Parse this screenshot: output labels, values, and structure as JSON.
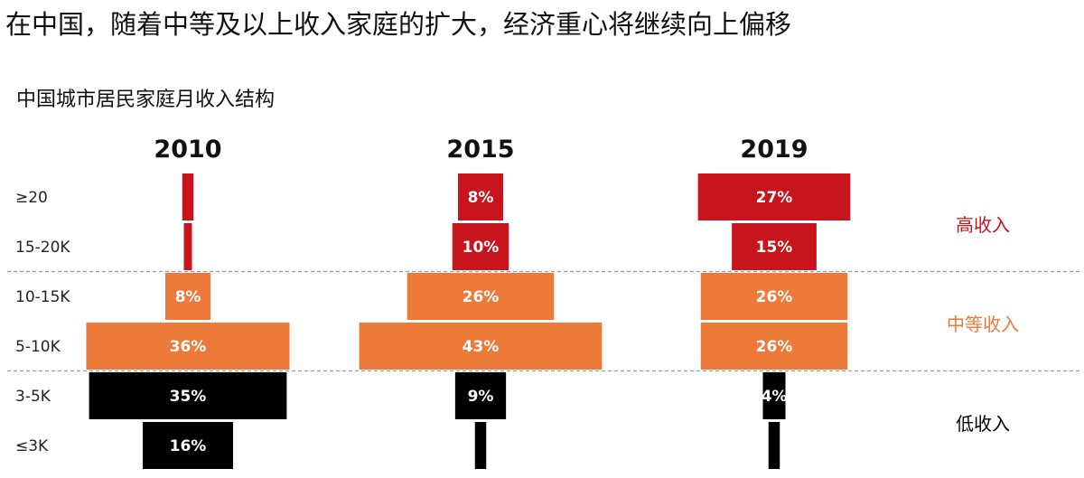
{
  "headline": "在中国，随着中等及以上收入家庭的扩大，经济重心将继续向上偏移",
  "chart_data": {
    "type": "bar",
    "subtype": "population-pyramid",
    "title": "中国城市居民家庭月收入结构",
    "categories": [
      "≥20",
      "15-20K",
      "10-15K",
      "5-10K",
      "3-5K",
      "≤3K"
    ],
    "series": [
      {
        "name": "2010",
        "values": [
          2,
          1,
          8,
          36,
          35,
          16
        ],
        "labels": [
          "",
          "",
          "8%",
          "36%",
          "35%",
          "16%"
        ]
      },
      {
        "name": "2015",
        "values": [
          8,
          10,
          26,
          43,
          9,
          2
        ],
        "labels": [
          "8%",
          "10%",
          "26%",
          "43%",
          "9%",
          ""
        ]
      },
      {
        "name": "2019",
        "values": [
          27,
          15,
          26,
          26,
          4,
          2
        ],
        "labels": [
          "27%",
          "15%",
          "26%",
          "26%",
          "4%",
          ""
        ]
      }
    ],
    "unit": "%",
    "groups": [
      {
        "name": "高收入",
        "rows": [
          "≥20",
          "15-20K"
        ],
        "color": "#c8141c"
      },
      {
        "name": "中等收入",
        "rows": [
          "10-15K",
          "5-10K"
        ],
        "color": "#ee7a3a"
      },
      {
        "name": "低收入",
        "rows": [
          "3-5K",
          "≤3K"
        ],
        "color": "#000000"
      }
    ],
    "grid": false
  }
}
